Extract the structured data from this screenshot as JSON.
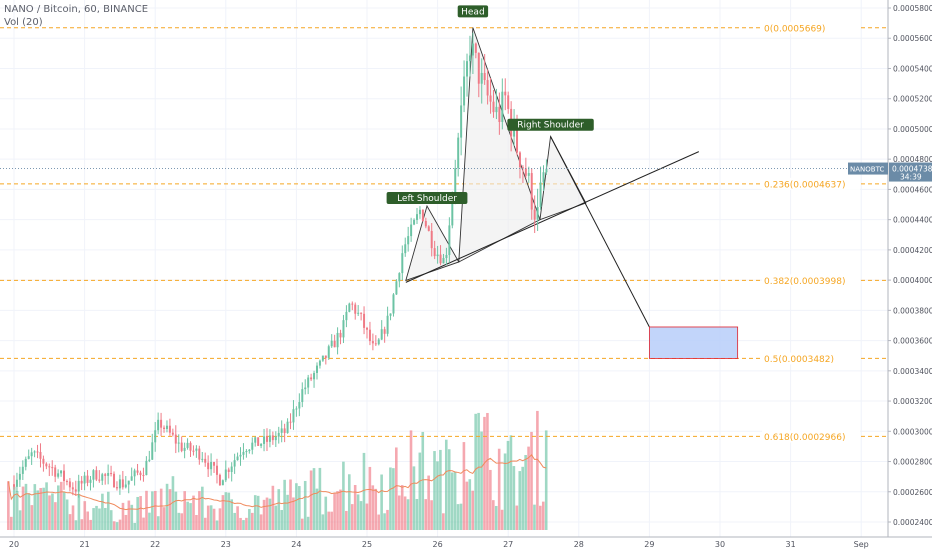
{
  "header": {
    "symbol_line": "NANO / Bitcoin, 60, BINANCE",
    "volume_indicator": "Vol (20)"
  },
  "colors": {
    "up": "#6cc3a4",
    "down": "#ef7a86",
    "fib": "#f5a623",
    "pattern_fill": "#ececec",
    "target_box_fill": "#b7cef9",
    "target_box_border": "#e0202a",
    "label_bg": "#2e5e2a",
    "price_tag_bg": "#6b8ba7",
    "vol_ma": "#f08a5d"
  },
  "chart_data": {
    "type": "candlestick",
    "title": "NANO / Bitcoin, 60, BINANCE",
    "x_axis": {
      "tick_labels": [
        "20",
        "21",
        "22",
        "23",
        "24",
        "25",
        "26",
        "27",
        "28",
        "29",
        "30",
        "31",
        "Sep"
      ],
      "range": [
        "Aug 19 22:00",
        "Sep 1 05:00"
      ]
    },
    "y_axis": {
      "tick_labels": [
        "0.00024000",
        "0.00026000",
        "0.00028000",
        "0.00030000",
        "0.00032000",
        "0.00034000",
        "0.00036000",
        "0.00038000",
        "0.00040000",
        "0.00042000",
        "0.00044000",
        "0.00046000",
        "0.00048000",
        "0.00050000",
        "0.00052000",
        "0.00054000",
        "0.00056000",
        "0.00058000"
      ],
      "range": [
        0.0002325,
        0.0005865
      ]
    },
    "current_price": {
      "symbol": "NANOBTC",
      "value": "0.0004738",
      "countdown": "34:39",
      "level": 0.0004738
    },
    "fib_levels": [
      {
        "label": "0(0.0005669)",
        "value": 0.0005669
      },
      {
        "label": "0.236(0.0004637)",
        "value": 0.0004637
      },
      {
        "label": "0.382(0.0003998)",
        "value": 0.0003998
      },
      {
        "label": "0.5(0.0003482)",
        "value": 0.0003482
      },
      {
        "label": "0.618(0.0002966)",
        "value": 0.0002966
      }
    ],
    "pattern_labels": [
      {
        "text": "Left Shoulder",
        "day": 25.85,
        "price": 0.000451
      },
      {
        "text": "Head",
        "day": 26.5,
        "price": 0.0005745
      },
      {
        "text": "Right Shoulder",
        "day": 27.6,
        "price": 0.0004995
      }
    ],
    "price_path": [
      {
        "day": 20.0,
        "price": 0.000265
      },
      {
        "day": 20.3,
        "price": 0.000285
      },
      {
        "day": 20.6,
        "price": 0.000275
      },
      {
        "day": 20.9,
        "price": 0.000262
      },
      {
        "day": 21.2,
        "price": 0.000272
      },
      {
        "day": 21.6,
        "price": 0.000265
      },
      {
        "day": 21.9,
        "price": 0.000276
      },
      {
        "day": 22.1,
        "price": 0.000306
      },
      {
        "day": 22.4,
        "price": 0.00029
      },
      {
        "day": 22.7,
        "price": 0.000285
      },
      {
        "day": 22.95,
        "price": 0.000268
      },
      {
        "day": 23.3,
        "price": 0.00029
      },
      {
        "day": 23.6,
        "price": 0.000293
      },
      {
        "day": 23.9,
        "price": 0.0003
      },
      {
        "day": 24.1,
        "price": 0.000325
      },
      {
        "day": 24.4,
        "price": 0.000345
      },
      {
        "day": 24.7,
        "price": 0.000368
      },
      {
        "day": 24.8,
        "price": 0.000385
      },
      {
        "day": 24.95,
        "price": 0.000375
      },
      {
        "day": 25.15,
        "price": 0.000352
      },
      {
        "day": 25.35,
        "price": 0.000375
      },
      {
        "day": 25.55,
        "price": 0.00042
      },
      {
        "day": 25.8,
        "price": 0.000447
      },
      {
        "day": 26.0,
        "price": 0.00042
      },
      {
        "day": 26.15,
        "price": 0.000412
      },
      {
        "day": 26.3,
        "price": 0.00048
      },
      {
        "day": 26.5,
        "price": 0.000556
      },
      {
        "day": 26.7,
        "price": 0.000525
      },
      {
        "day": 26.9,
        "price": 0.000508
      },
      {
        "day": 27.0,
        "price": 0.00052
      },
      {
        "day": 27.15,
        "price": 0.00049
      },
      {
        "day": 27.3,
        "price": 0.00047
      },
      {
        "day": 27.45,
        "price": 0.00044
      },
      {
        "day": 27.55,
        "price": 0.000473
      }
    ],
    "volume_profile": [
      {
        "day": 20.0,
        "vol": 0.25
      },
      {
        "day": 20.3,
        "vol": 0.3
      },
      {
        "day": 20.9,
        "vol": 0.22
      },
      {
        "day": 21.3,
        "vol": 0.2
      },
      {
        "day": 21.8,
        "vol": 0.18
      },
      {
        "day": 22.2,
        "vol": 0.3
      },
      {
        "day": 22.8,
        "vol": 0.2
      },
      {
        "day": 23.3,
        "vol": 0.22
      },
      {
        "day": 23.9,
        "vol": 0.28
      },
      {
        "day": 24.4,
        "vol": 0.35
      },
      {
        "day": 24.8,
        "vol": 0.45
      },
      {
        "day": 25.3,
        "vol": 0.4
      },
      {
        "day": 25.7,
        "vol": 0.55
      },
      {
        "day": 26.1,
        "vol": 0.45
      },
      {
        "day": 26.4,
        "vol": 0.8
      },
      {
        "day": 26.7,
        "vol": 0.65
      },
      {
        "day": 27.0,
        "vol": 0.5
      },
      {
        "day": 27.3,
        "vol": 0.55
      },
      {
        "day": 27.55,
        "vol": 0.7
      }
    ],
    "volume_range": {
      "start_day": 19.92,
      "end_day": 27.58,
      "bars": 184
    },
    "head_shoulders_triangles": [
      [
        {
          "day": 25.55,
          "price": 0.0003998
        },
        {
          "day": 25.85,
          "price": 0.000449
        },
        {
          "day": 26.3,
          "price": 0.000412
        }
      ],
      [
        {
          "day": 26.3,
          "price": 0.000412
        },
        {
          "day": 26.5,
          "price": 0.000567
        },
        {
          "day": 27.45,
          "price": 0.00044
        }
      ],
      [
        {
          "day": 27.45,
          "price": 0.00044
        },
        {
          "day": 27.6,
          "price": 0.000495
        },
        {
          "day": 28.1,
          "price": 0.000451
        }
      ]
    ],
    "neckline": [
      {
        "day": 25.55,
        "price": 0.0003985
      },
      {
        "day": 29.7,
        "price": 0.000485
      }
    ],
    "projection": [
      {
        "day": 27.6,
        "price": 0.000495
      },
      {
        "day": 29.0,
        "price": 0.000369
      }
    ],
    "target_box": {
      "day_start": 29.0,
      "day_end": 30.25,
      "price_top": 0.000369,
      "price_bottom": 0.0003482
    }
  }
}
